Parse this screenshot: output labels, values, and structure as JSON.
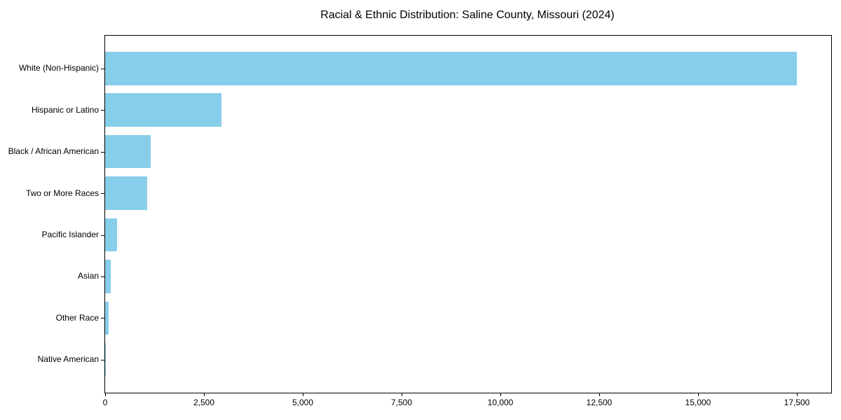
{
  "chart_data": {
    "type": "bar",
    "orientation": "horizontal",
    "title": "Racial & Ethnic Distribution: Saline County, Missouri (2024)",
    "xlabel": "",
    "ylabel": "",
    "categories": [
      "White (Non-Hispanic)",
      "Hispanic or Latino",
      "Black / African American",
      "Two or More Races",
      "Pacific Islander",
      "Asian",
      "Other Race",
      "Native American"
    ],
    "values": [
      17500,
      2940,
      1150,
      1060,
      300,
      140,
      90,
      15
    ],
    "xlim": [
      0,
      18375
    ],
    "x_ticks": [
      0,
      2500,
      5000,
      7500,
      10000,
      12500,
      15000,
      17500
    ],
    "x_tick_labels": [
      "0",
      "2,500",
      "5,000",
      "7,500",
      "10,000",
      "12,500",
      "15,000",
      "17,500"
    ],
    "bar_color": "#87CEEB",
    "axis_color": "#000000",
    "text_color": "#000000",
    "background_color": "#FFFFFF",
    "grid": false,
    "legend": false,
    "value_order": "descending"
  }
}
